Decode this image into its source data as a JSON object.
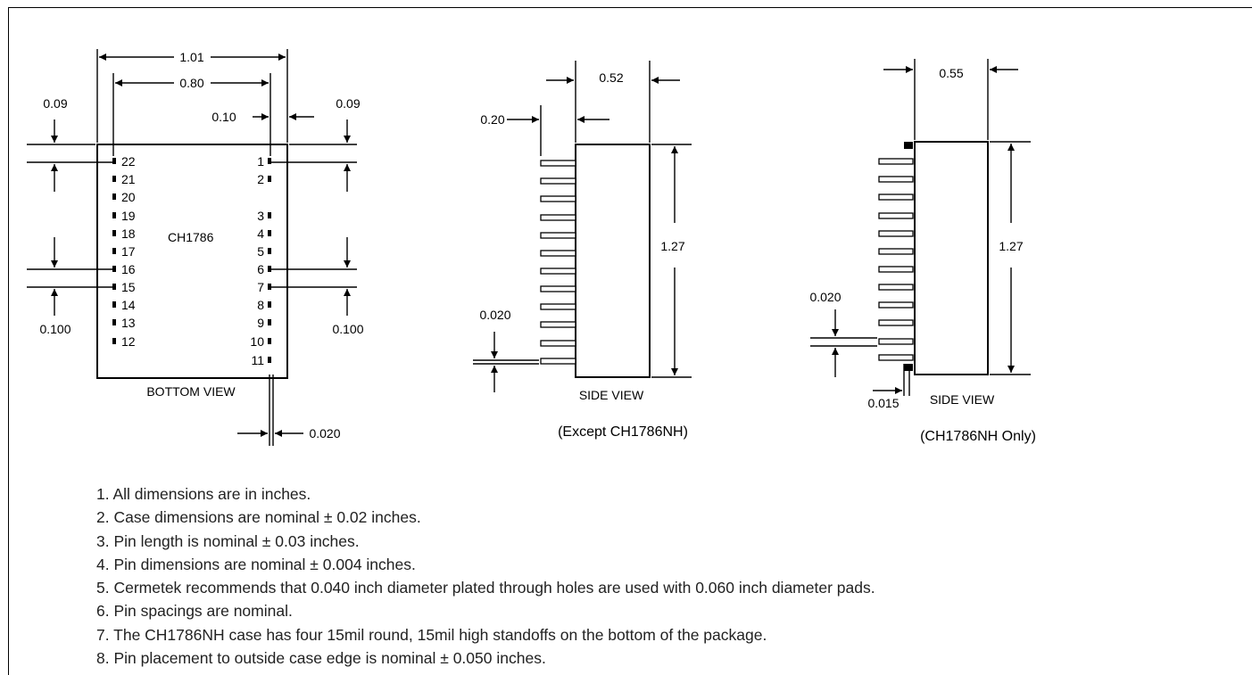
{
  "bottom_view": {
    "caption": "BOTTOM VIEW",
    "part_label": "CH1786",
    "dims": {
      "overall_width": "1.01",
      "pin_row_spacing": "0.80",
      "pin_inset": "0.10",
      "edge_to_pin_left": "0.09",
      "edge_to_pin_right": "0.09",
      "pin_pitch_left": "0.100",
      "pin_pitch_right": "0.100",
      "pin_width": "0.020"
    },
    "left_pins": [
      "22",
      "21",
      "20",
      "19",
      "18",
      "17",
      "16",
      "15",
      "14",
      "13",
      "12"
    ],
    "right_pins": [
      "1",
      "2",
      "3",
      "4",
      "5",
      "6",
      "7",
      "8",
      "9",
      "10",
      "11"
    ]
  },
  "side_view_standard": {
    "caption": "SIDE VIEW",
    "subtitle": "(Except CH1786NH)",
    "dims": {
      "depth": "0.52",
      "pin_length": "0.20",
      "height": "1.27",
      "pin_thickness": "0.020"
    }
  },
  "side_view_nh": {
    "caption": "SIDE VIEW",
    "subtitle": "(CH1786NH Only)",
    "dims": {
      "depth": "0.55",
      "height": "1.27",
      "pin_thickness": "0.020",
      "standoff": "0.015"
    }
  },
  "notes": [
    "1. All dimensions are in inches.",
    "2. Case dimensions are nominal ± 0.02 inches.",
    "3. Pin length is nominal ± 0.03 inches.",
    "4. Pin dimensions are nominal ± 0.004 inches.",
    "5. Cermetek recommends that 0.040 inch diameter plated through holes are used with 0.060 inch diameter pads.",
    "6. Pin spacings are nominal.",
    "7. The CH1786NH case has four 15mil round, 15mil high standoffs on the bottom of the package.",
    "8. Pin placement to outside case edge is nominal ± 0.050 inches."
  ]
}
